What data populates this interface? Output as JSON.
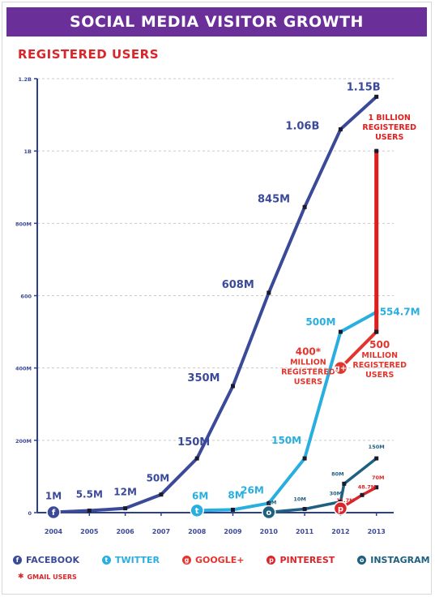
{
  "header": {
    "title": "SOCIAL MEDIA VISITOR GROWTH"
  },
  "section": {
    "title": "REGISTERED USERS"
  },
  "colors": {
    "facebook": "#3b4a98",
    "twitter": "#29aee0",
    "googleplus": "#e2352d",
    "gmail": "#e01e1e",
    "pinterest": "#d9262b",
    "instagram": "#1f5f7f",
    "banner": "#6a2f98",
    "accent": "#d9262b"
  },
  "legend": {
    "items": [
      {
        "label": "FACEBOOK",
        "icon": "facebook-icon",
        "color": "#3b4a98",
        "glyph": "f"
      },
      {
        "label": "TWITTER",
        "icon": "twitter-icon",
        "color": "#29aee0",
        "glyph": "t"
      },
      {
        "label": "GOOGLE+",
        "icon": "googleplus-icon",
        "color": "#e2352d",
        "glyph": "g"
      },
      {
        "label": "PINTEREST",
        "icon": "pinterest-icon",
        "color": "#d9262b",
        "glyph": "p"
      },
      {
        "label": "INSTAGRAM",
        "icon": "instagram-icon",
        "color": "#1f5f7f",
        "glyph": "o"
      }
    ],
    "gmail_label": "GMAIL USERS"
  },
  "chart_data": {
    "type": "line",
    "title": "REGISTERED USERS",
    "x": [
      2004,
      2005,
      2006,
      2007,
      2008,
      2009,
      2010,
      2011,
      2012,
      2013
    ],
    "x_tick_labels": [
      "2004",
      "2005",
      "2006",
      "2007",
      "2008",
      "2009",
      "2010",
      "2011",
      "2012",
      "2013"
    ],
    "y_ticks": [
      {
        "value": 0,
        "label": "0"
      },
      {
        "value": 200,
        "label": "200M"
      },
      {
        "value": 400,
        "label": "400M"
      },
      {
        "value": 600,
        "label": "600"
      },
      {
        "value": 800,
        "label": "800M"
      },
      {
        "value": 1000,
        "label": "1B"
      },
      {
        "value": 1200,
        "label": "1.2B"
      }
    ],
    "ylim": [
      0,
      1200
    ],
    "y_unit": "millions",
    "grid": true,
    "series": [
      {
        "name": "FACEBOOK",
        "color": "#3b4a98",
        "points": [
          {
            "x": 2004,
            "y": 1,
            "label": "1M"
          },
          {
            "x": 2005,
            "y": 5.5,
            "label": "5.5M"
          },
          {
            "x": 2006,
            "y": 12,
            "label": "12M"
          },
          {
            "x": 2007,
            "y": 50,
            "label": "50M"
          },
          {
            "x": 2008,
            "y": 150,
            "label": "150M"
          },
          {
            "x": 2009,
            "y": 350,
            "label": "350M"
          },
          {
            "x": 2010,
            "y": 608,
            "label": "608M"
          },
          {
            "x": 2011,
            "y": 845,
            "label": "845M"
          },
          {
            "x": 2012,
            "y": 1060,
            "label": "1.06B"
          },
          {
            "x": 2013,
            "y": 1150,
            "label": "1.15B"
          }
        ]
      },
      {
        "name": "TWITTER",
        "color": "#29aee0",
        "points": [
          {
            "x": 2008,
            "y": 6,
            "label": "6M"
          },
          {
            "x": 2009,
            "y": 8,
            "label": "8M"
          },
          {
            "x": 2010,
            "y": 26,
            "label": "26M"
          },
          {
            "x": 2011,
            "y": 150,
            "label": "150M"
          },
          {
            "x": 2012,
            "y": 500,
            "label": "500M"
          },
          {
            "x": 2013,
            "y": 554.7,
            "label": "554.7M"
          }
        ]
      },
      {
        "name": "GOOGLE+",
        "color": "#e2352d",
        "points": [
          {
            "x": 2012,
            "y": 400,
            "label": "400* MILLION REGISTERED USERS"
          },
          {
            "x": 2013,
            "y": 500,
            "label": "500 MILLION REGISTERED USERS"
          }
        ]
      },
      {
        "name": "GMAIL USERS",
        "color": "#e01e1e",
        "points": [
          {
            "x": 2013,
            "y": 500,
            "label": ""
          },
          {
            "x": 2013,
            "y": 1000,
            "label": "1 BILLION REGISTERED USERS"
          }
        ]
      },
      {
        "name": "INSTAGRAM",
        "color": "#1f5f7f",
        "points": [
          {
            "x": 2010,
            "y": 1,
            "label": "1M"
          },
          {
            "x": 2011,
            "y": 10,
            "label": "10M"
          },
          {
            "x": 2012,
            "y": 30,
            "label": "30M"
          },
          {
            "x": 2012.1,
            "y": 80,
            "label": "80M"
          },
          {
            "x": 2013,
            "y": 150,
            "label": "150M"
          }
        ]
      },
      {
        "name": "PINTEREST",
        "color": "#d9262b",
        "points": [
          {
            "x": 2012,
            "y": 11.7,
            "label": "11.7M"
          },
          {
            "x": 2012.6,
            "y": 48.7,
            "label": "48.7M"
          },
          {
            "x": 2013,
            "y": 70,
            "label": "70M"
          }
        ]
      }
    ]
  }
}
